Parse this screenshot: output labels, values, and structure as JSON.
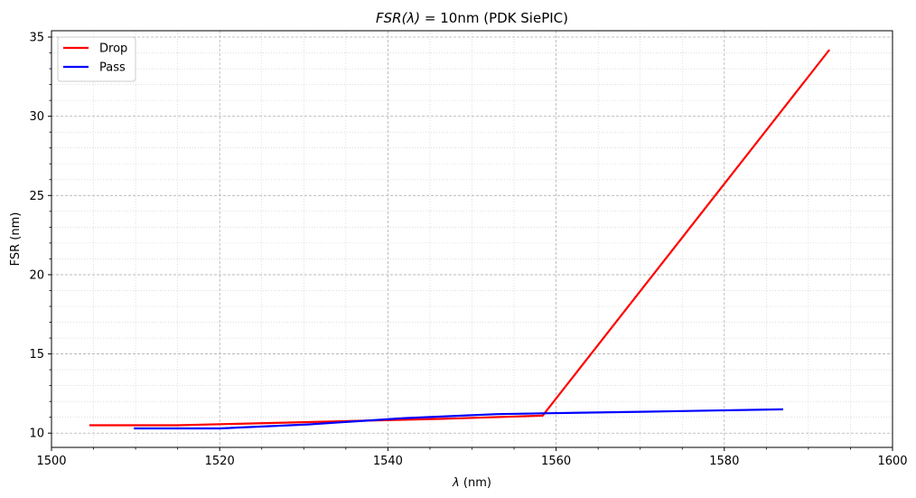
{
  "chart_data": {
    "type": "line",
    "title": "FSR(λ) = 10nm (PDK SiePIC)",
    "title_italic_part": "FSR(λ)",
    "title_rest": " = 10nm (PDK SiePIC)",
    "xlabel": "λ (nm)",
    "xlabel_italic_part": "λ",
    "xlabel_rest": " (nm)",
    "ylabel": "FSR (nm)",
    "xlim": [
      1500,
      1600
    ],
    "ylim": [
      9.1,
      35.4
    ],
    "x_ticks": [
      1500,
      1520,
      1540,
      1560,
      1580,
      1600
    ],
    "y_ticks": [
      10,
      15,
      20,
      25,
      30,
      35
    ],
    "x_minor_step": 5,
    "y_minor_step": 1,
    "grid": true,
    "legend_position": "top-left",
    "series": [
      {
        "name": "Drop",
        "color": "#ff0000",
        "x": [
          1504.5,
          1515.0,
          1530.5,
          1546.5,
          1558.4,
          1592.5
        ],
        "y": [
          10.5,
          10.5,
          10.7,
          10.9,
          11.1,
          34.2
        ]
      },
      {
        "name": "Pass",
        "color": "#0000ff",
        "x": [
          1509.8,
          1520.0,
          1530.5,
          1542.0,
          1553.0,
          1558.4,
          1570.0,
          1587.0
        ],
        "y": [
          10.3,
          10.3,
          10.55,
          10.95,
          11.2,
          11.25,
          11.35,
          11.5
        ]
      }
    ]
  }
}
